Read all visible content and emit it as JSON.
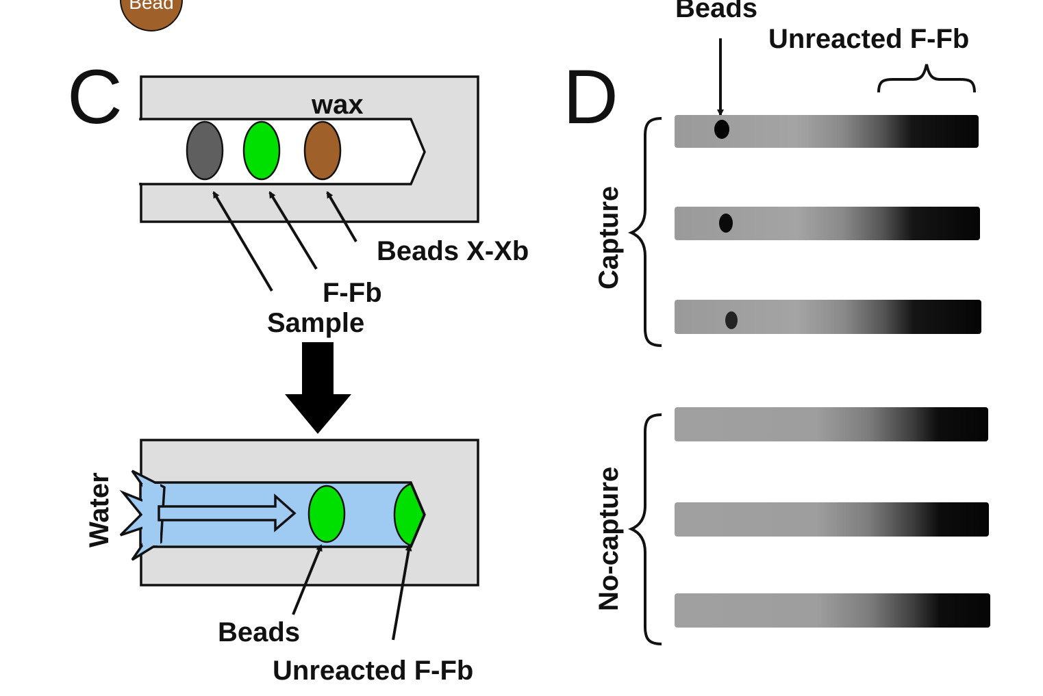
{
  "colors": {
    "bead_gray": "#5f5f5f",
    "bead_green": "#00e000",
    "bead_brown": "#a0602a",
    "paper_gray": "#dedede",
    "water_blue": "#9fcaf2",
    "ink": "#111111"
  },
  "top_partial": {
    "bead_label": "Bead"
  },
  "panel_c": {
    "letter": "C",
    "wax_label": "wax",
    "beads_label": "Beads X-Xb",
    "ffb_label": "F-Fb",
    "sample_label": "Sample",
    "water_label": "Water",
    "beads_bottom_label": "Beads",
    "unreacted_label": "Unreacted F-Fb"
  },
  "panel_d": {
    "letter": "D",
    "beads_label": "Beads",
    "unreacted_label": "Unreacted F-Fb",
    "capture_label": "Capture",
    "no_capture_label": "No-capture",
    "strips": [
      {
        "group": "capture",
        "bead_spot": true
      },
      {
        "group": "capture",
        "bead_spot": true
      },
      {
        "group": "capture",
        "bead_spot": true
      },
      {
        "group": "no-capture",
        "bead_spot": false
      },
      {
        "group": "no-capture",
        "bead_spot": false
      },
      {
        "group": "no-capture",
        "bead_spot": false
      }
    ]
  }
}
